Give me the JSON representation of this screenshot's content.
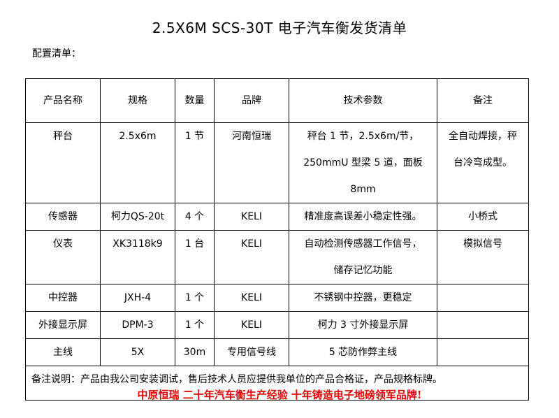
{
  "title": "2.5X6M SCS-30T 电子汽车衡发货清单",
  "subtitle": "配置清单：",
  "table": {
    "headers": [
      "产品名称",
      "规格",
      "数量",
      "品牌",
      "技术参数",
      "备注"
    ],
    "rows": [
      {
        "name": "秤台",
        "spec": "2.5x6m",
        "qty": "1 节",
        "brand": "河南恒瑞",
        "tech": [
          "秤台 1 节，2.5x6m/节，",
          "250mmU 型梁 5 道，面板 8mm"
        ],
        "remark": [
          "全自动焊接，秤",
          "台冷弯成型。"
        ]
      },
      {
        "name": "传感器",
        "spec": "柯力QS-20t",
        "qty": "4 个",
        "brand": "KELI",
        "tech": [
          "精准度高误差小稳定性强。"
        ],
        "remark": [
          "小桥式"
        ]
      },
      {
        "name": "仪表",
        "spec": "XK3118k9",
        "qty": "1 台",
        "brand": "KELI",
        "tech": [
          "自动检测传感器工作信号，",
          "储存记忆功能"
        ],
        "remark": [
          "模拟信号"
        ]
      },
      {
        "name": "中控器",
        "spec": "JXH-4",
        "qty": "1 个",
        "brand": "KELI",
        "tech": [
          "不锈钢中控器，更稳定"
        ],
        "remark": [
          ""
        ]
      },
      {
        "name": "外接显示屏",
        "spec": "DPM-3",
        "qty": "1 个",
        "brand": "KELI",
        "tech": [
          "柯力 3 寸外接显示屏"
        ],
        "remark": [
          ""
        ]
      },
      {
        "name": "主线",
        "spec": "5X",
        "qty": "30m",
        "brand": "专用信号线",
        "tech": [
          "5 芯防作弊主线"
        ],
        "remark": [
          ""
        ]
      }
    ],
    "note": "备注说明：产品由我公司安装调试，售后技术人员应提供我单位的产品合格证，产品规格标牌。"
  },
  "footer": "中原恒瑞 二十年汽车衡生产经验 十年铸造电子地磅领军品牌!",
  "colors": {
    "footer": "#e00000"
  }
}
